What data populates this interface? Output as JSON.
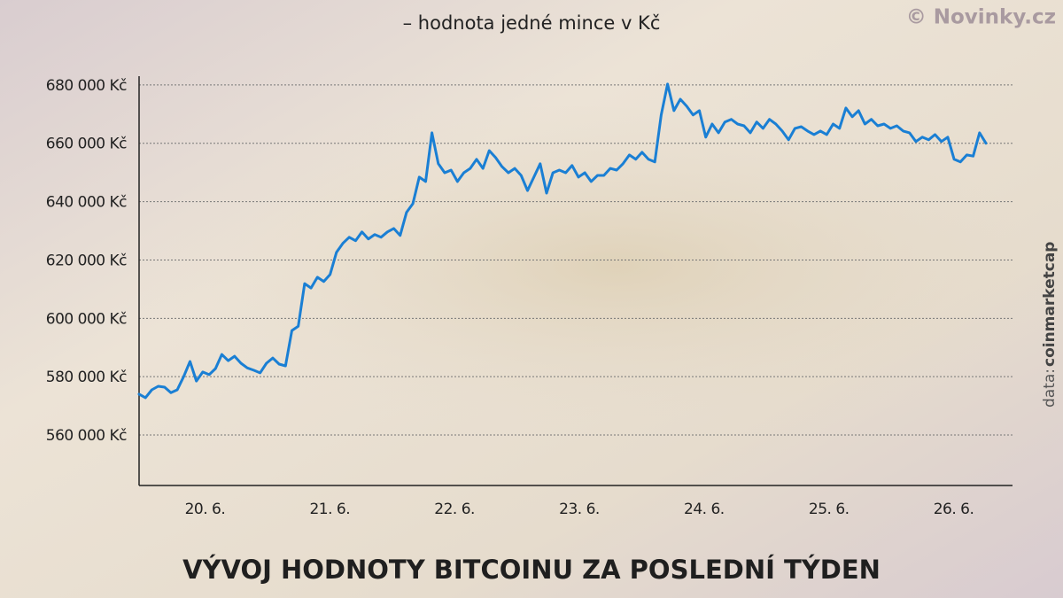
{
  "chart_data": {
    "type": "line",
    "title": "VÝVOJ HODNOTY BITCOINU ZA POSLEDNÍ TÝDEN",
    "subtitle": "– hodnota jedné mince v Kč",
    "credit": "© Novinky.cz",
    "source_prefix": "data:",
    "source": "coinmarketcap",
    "x_labels": [
      "20. 6.",
      "21. 6.",
      "22. 6.",
      "23. 6.",
      "24. 6.",
      "25. 6.",
      "26. 6."
    ],
    "series": [
      {
        "color": "#1a7fd4",
        "values": [
          574000,
          572800,
          575500,
          576700,
          576400,
          574500,
          575500,
          580000,
          585200,
          578500,
          581600,
          580700,
          582800,
          587600,
          585500,
          587000,
          584600,
          583000,
          582200,
          581300,
          584600,
          586400,
          584300,
          583700,
          595800,
          597300,
          611900,
          610400,
          614100,
          612600,
          615000,
          622600,
          625700,
          627800,
          626600,
          629600,
          627200,
          628700,
          627800,
          629600,
          630800,
          628400,
          636300,
          639300,
          648400,
          646900,
          663600,
          653000,
          649900,
          650800,
          646900,
          649900,
          651400,
          654500,
          651400,
          657500,
          655100,
          652000,
          649900,
          651400,
          649000,
          643800,
          648400,
          653000,
          642900,
          649900,
          650800,
          649900,
          652400,
          648400,
          649900,
          646900,
          649000,
          649000,
          651400,
          650800,
          653000,
          656000,
          654500,
          656900,
          654500,
          653600,
          669700,
          680300,
          671200,
          675100,
          672700,
          669700,
          671200,
          662100,
          666600,
          663600,
          667300,
          668200,
          666600,
          666000,
          663600,
          667300,
          665100,
          668200,
          666600,
          664200,
          661200,
          665100,
          665700,
          664200,
          663000,
          664200,
          663000,
          666600,
          665100,
          672100,
          669100,
          671200,
          666600,
          668200,
          666000,
          666600,
          665100,
          666000,
          664200,
          663600,
          660600,
          662100,
          661200,
          663000,
          660600,
          662100,
          654500,
          653600,
          656000,
          655600,
          663600,
          660000
        ]
      }
    ],
    "ylim": [
      542700,
      683000
    ],
    "yticks": [
      {
        "value": 560000,
        "label": "560 000 Kč"
      },
      {
        "value": 580000,
        "label": "580 000 Kč"
      },
      {
        "value": 600000,
        "label": "600 000 Kč"
      },
      {
        "value": 620000,
        "label": "620 000 Kč"
      },
      {
        "value": 640000,
        "label": "640 000 Kč"
      },
      {
        "value": 660000,
        "label": "660 000 Kč"
      },
      {
        "value": 680000,
        "label": "680 000 Kč"
      }
    ],
    "grid": true
  }
}
